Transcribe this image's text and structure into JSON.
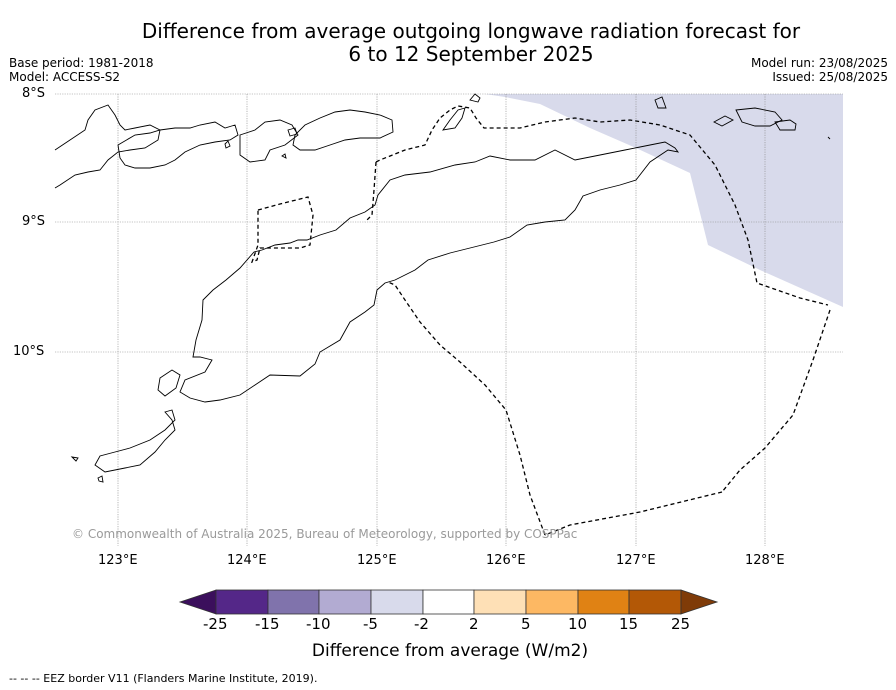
{
  "title_line1": "Difference from average outgoing longwave radiation forecast for",
  "title_line2": "6 to 12 September 2025",
  "meta": {
    "base_period": "Base period: 1981-2018",
    "model": "Model: ACCESS-S2",
    "model_run": "Model run: 23/08/2025",
    "issued": "Issued: 25/08/2025"
  },
  "axes": {
    "lat_labels": [
      "8°S",
      "9°S",
      "10°S"
    ],
    "lon_labels": [
      "123°E",
      "124°E",
      "125°E",
      "126°E",
      "127°E",
      "128°E"
    ]
  },
  "copyright": "© Commonwealth of Australia 2025, Bureau of Meteorology, supported by COSPPac",
  "colorbar": {
    "title": "Difference from average (W/m2)",
    "tick_labels": [
      "-25",
      "-15",
      "-10",
      "-5",
      "-2",
      "2",
      "5",
      "10",
      "15",
      "25"
    ],
    "colors": [
      "#3b0f5c",
      "#542788",
      "#8073ac",
      "#b2abd2",
      "#d8daeb",
      "#ffffff",
      "#fee0b6",
      "#fdb863",
      "#e08214",
      "#b35806",
      "#7f3b08"
    ]
  },
  "footnote": "-- -- -- EEZ border V11 (Flanders Marine Institute, 2019)."
}
